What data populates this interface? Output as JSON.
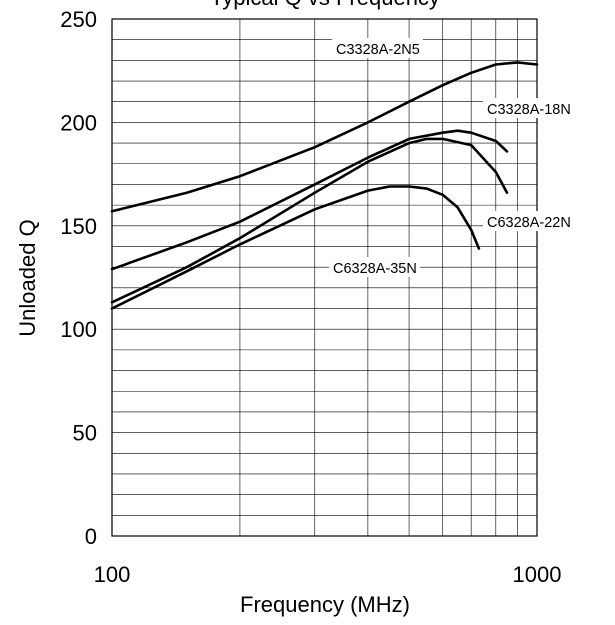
{
  "chart_data": {
    "type": "line",
    "title": "Typical Q vs Frequency",
    "xlabel": "Frequency (MHz)",
    "ylabel": "Unloaded Q",
    "xscale": "log",
    "xlim": [
      100,
      1000
    ],
    "ylim": [
      0,
      250
    ],
    "xticks": [
      100,
      1000
    ],
    "xtick_labels": [
      "100",
      "1000"
    ],
    "yticks": [
      0,
      50,
      100,
      150,
      200,
      250
    ],
    "ytick_labels": [
      "0",
      "50",
      "100",
      "150",
      "200",
      "250"
    ],
    "grid": true,
    "series": [
      {
        "name": "C3328A-2N5",
        "x": [
          100,
          150,
          200,
          300,
          400,
          500,
          600,
          700,
          800,
          900,
          1000
        ],
        "y": [
          157,
          166,
          174,
          188,
          200,
          210,
          218,
          224,
          228,
          229,
          228
        ]
      },
      {
        "name": "C3328A-18N",
        "x": [
          100,
          150,
          200,
          300,
          400,
          500,
          600,
          650,
          700,
          800,
          850
        ],
        "y": [
          129,
          142,
          152,
          170,
          183,
          192,
          195,
          196,
          195,
          191,
          186
        ]
      },
      {
        "name": "C6328A-22N",
        "x": [
          100,
          150,
          200,
          300,
          400,
          500,
          550,
          600,
          700,
          800,
          850
        ],
        "y": [
          113,
          130,
          144,
          166,
          181,
          190,
          192,
          192,
          189,
          176,
          166
        ]
      },
      {
        "name": "C6328A-35N",
        "x": [
          100,
          150,
          200,
          300,
          400,
          450,
          500,
          550,
          600,
          650,
          700,
          730
        ],
        "y": [
          110,
          128,
          141,
          158,
          167,
          169,
          169,
          168,
          165,
          159,
          148,
          139
        ]
      }
    ]
  }
}
